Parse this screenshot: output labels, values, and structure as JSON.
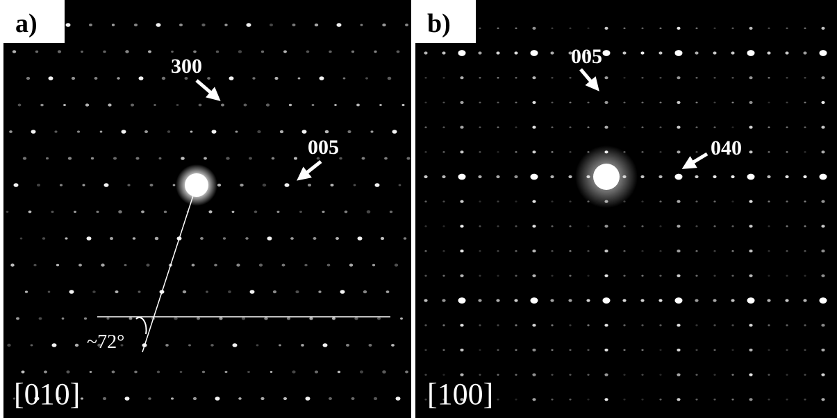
{
  "panels": [
    {
      "label": "a)",
      "zone_axis": "[010]",
      "annotations": [
        "300",
        "005"
      ],
      "angle": "~72°"
    },
    {
      "label": "b)",
      "zone_axis": "[100]",
      "annotations": [
        "005",
        "040"
      ]
    }
  ]
}
